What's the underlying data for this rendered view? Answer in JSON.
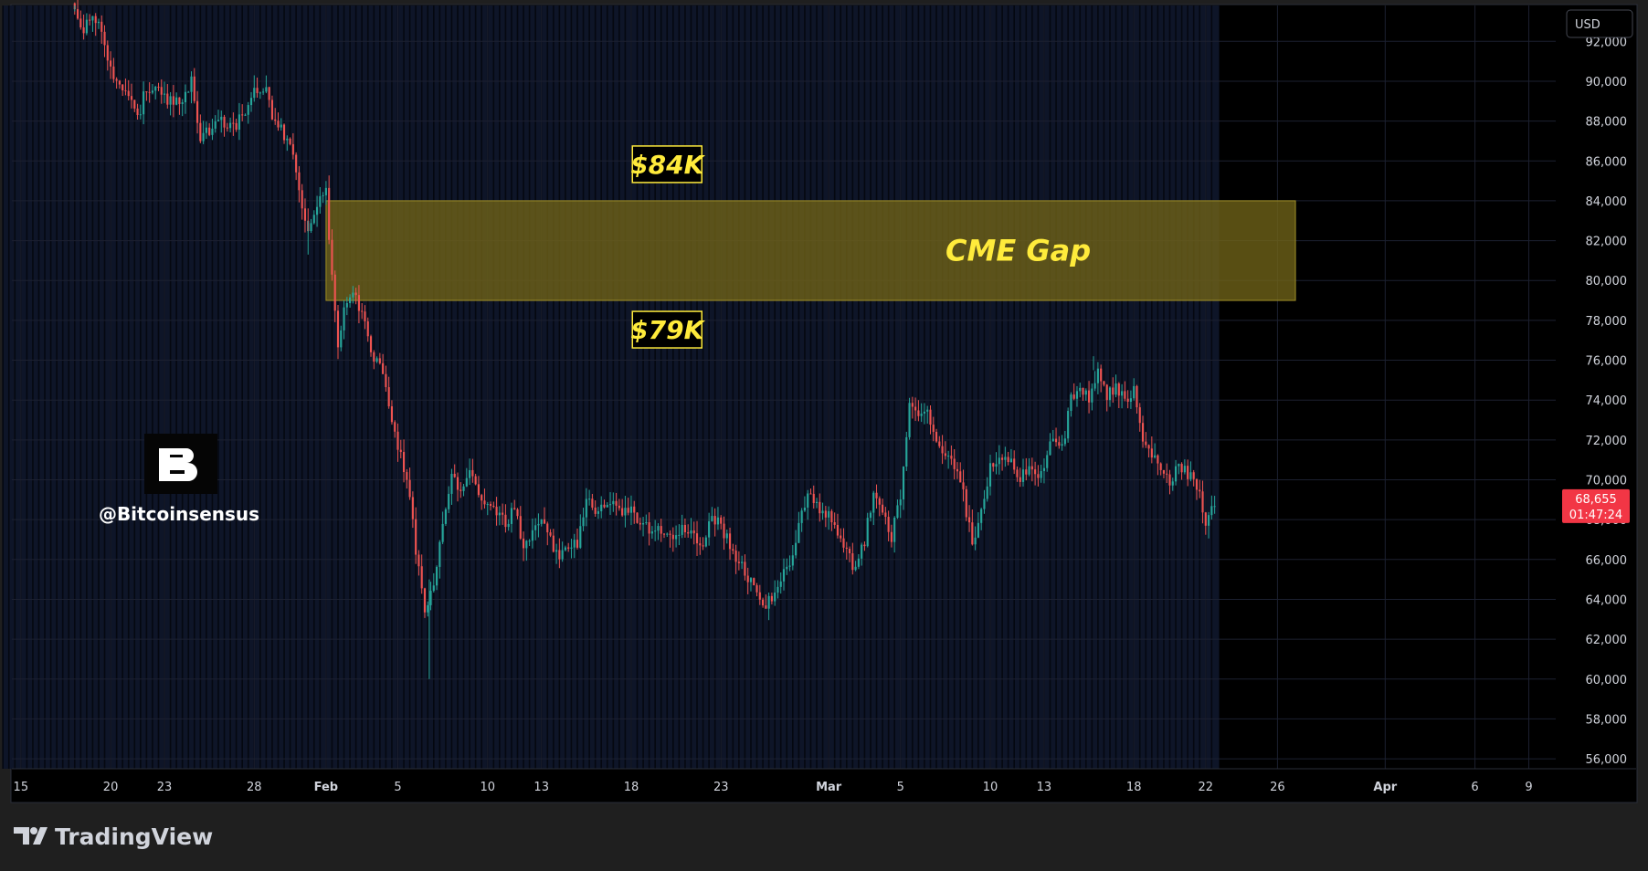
{
  "watermark": {
    "handle": "@Bitcoinsensus"
  },
  "footer": {
    "brand": "TradingView"
  },
  "currency_button": {
    "label": "USD"
  },
  "price_badge": {
    "price": "68,655",
    "countdown": "01:47:24",
    "color": "#f23645"
  },
  "colors": {
    "up": "#26a69a",
    "down": "#ef5350",
    "gap_fill": "#716418",
    "annotation": "#ffeb3b",
    "session_band": "#0e1528"
  },
  "chart_data": {
    "type": "candlestick",
    "instrument": "BTC/USD",
    "y_unit": "USD",
    "y_range": [
      55500,
      93800
    ],
    "y_ticks": [
      56000,
      58000,
      60000,
      62000,
      64000,
      66000,
      68000,
      70000,
      72000,
      74000,
      76000,
      78000,
      80000,
      82000,
      84000,
      86000,
      88000,
      90000,
      92000
    ],
    "y_tick_labels": [
      "56,000",
      "58,000",
      "60,000",
      "62,000",
      "64,000",
      "66,000",
      "68,000",
      "70,000",
      "72,000",
      "74,000",
      "76,000",
      "78,000",
      "80,000",
      "82,000",
      "84,000",
      "86,000",
      "88,000",
      "90,000",
      "92,000"
    ],
    "x_range": [
      "2026-01-15",
      "2026-04-11"
    ],
    "x_ticks": [
      {
        "date": "2026-01-15",
        "label": "15",
        "month": false
      },
      {
        "date": "2026-01-20",
        "label": "20",
        "month": false
      },
      {
        "date": "2026-01-23",
        "label": "23",
        "month": false
      },
      {
        "date": "2026-01-28",
        "label": "28",
        "month": false
      },
      {
        "date": "2026-02-01",
        "label": "Feb",
        "month": true
      },
      {
        "date": "2026-02-05",
        "label": "5",
        "month": false
      },
      {
        "date": "2026-02-10",
        "label": "10",
        "month": false
      },
      {
        "date": "2026-02-13",
        "label": "13",
        "month": false
      },
      {
        "date": "2026-02-18",
        "label": "18",
        "month": false
      },
      {
        "date": "2026-02-23",
        "label": "23",
        "month": false
      },
      {
        "date": "2026-03-01",
        "label": "Mar",
        "month": true
      },
      {
        "date": "2026-03-05",
        "label": "5",
        "month": false
      },
      {
        "date": "2026-03-10",
        "label": "10",
        "month": false
      },
      {
        "date": "2026-03-13",
        "label": "13",
        "month": false
      },
      {
        "date": "2026-03-18",
        "label": "18",
        "month": false
      },
      {
        "date": "2026-03-22",
        "label": "22",
        "month": false
      },
      {
        "date": "2026-03-26",
        "label": "26",
        "month": false
      },
      {
        "date": "2026-04-01",
        "label": "Apr",
        "month": true
      },
      {
        "date": "2026-04-06",
        "label": "6",
        "month": false
      },
      {
        "date": "2026-04-09",
        "label": "9",
        "month": false
      }
    ],
    "price_path": [
      [
        "2026-01-18",
        93600
      ],
      [
        "2026-01-18T12",
        92600
      ],
      [
        "2026-01-19",
        93100
      ],
      [
        "2026-01-19T12",
        92500
      ],
      [
        "2026-01-20",
        90500
      ],
      [
        "2026-01-21",
        89500
      ],
      [
        "2026-01-21T12",
        88000
      ],
      [
        "2026-01-22",
        89800
      ],
      [
        "2026-01-23",
        89200
      ],
      [
        "2026-01-24",
        88800
      ],
      [
        "2026-01-24T12",
        90200
      ],
      [
        "2026-01-25",
        87200
      ],
      [
        "2026-01-26",
        88000
      ],
      [
        "2026-01-27",
        87800
      ],
      [
        "2026-01-27T12",
        88600
      ],
      [
        "2026-01-28",
        89800
      ],
      [
        "2026-01-28T16",
        89600
      ],
      [
        "2026-01-29",
        88200
      ],
      [
        "2026-01-30",
        86800
      ],
      [
        "2026-01-30T12",
        84500
      ],
      [
        "2026-01-31",
        82600
      ],
      [
        "2026-01-31T12",
        83800
      ],
      [
        "2026-02-01",
        84300
      ],
      [
        "2026-02-01T08",
        80200
      ],
      [
        "2026-02-01T16",
        76500
      ],
      [
        "2026-02-02",
        78400
      ],
      [
        "2026-02-02T12",
        79100
      ],
      [
        "2026-02-03",
        78600
      ],
      [
        "2026-02-03T12",
        76500
      ],
      [
        "2026-02-04",
        75800
      ],
      [
        "2026-02-04T12",
        73800
      ],
      [
        "2026-02-05",
        71800
      ],
      [
        "2026-02-05T12",
        70200
      ],
      [
        "2026-02-06",
        66500
      ],
      [
        "2026-02-06T12",
        63500
      ],
      [
        "2026-02-07",
        65000
      ],
      [
        "2026-02-07T12",
        67500
      ],
      [
        "2026-02-08",
        70500
      ],
      [
        "2026-02-08T12",
        69500
      ],
      [
        "2026-02-09",
        70200
      ],
      [
        "2026-02-10",
        68800
      ],
      [
        "2026-02-11",
        67800
      ],
      [
        "2026-02-11T12",
        68500
      ],
      [
        "2026-02-12",
        66500
      ],
      [
        "2026-02-12T12",
        67200
      ],
      [
        "2026-02-13",
        67800
      ],
      [
        "2026-02-14",
        66200
      ],
      [
        "2026-02-15",
        66800
      ],
      [
        "2026-02-15T12",
        69000
      ],
      [
        "2026-02-16",
        68600
      ],
      [
        "2026-02-17",
        69200
      ],
      [
        "2026-02-17T12",
        68200
      ],
      [
        "2026-02-18",
        68500
      ],
      [
        "2026-02-19",
        67500
      ],
      [
        "2026-02-19T12",
        67800
      ],
      [
        "2026-02-20",
        67000
      ],
      [
        "2026-02-21",
        67600
      ],
      [
        "2026-02-22",
        66800
      ],
      [
        "2026-02-22T12",
        68200
      ],
      [
        "2026-02-23",
        67700
      ],
      [
        "2026-02-24",
        65800
      ],
      [
        "2026-02-25",
        64500
      ],
      [
        "2026-02-25T12",
        63500
      ],
      [
        "2026-02-26",
        64500
      ],
      [
        "2026-02-27",
        66000
      ],
      [
        "2026-02-27T12",
        68500
      ],
      [
        "2026-02-28",
        69500
      ],
      [
        "2026-02-28T12",
        68300
      ],
      [
        "2026-03-01",
        68200
      ],
      [
        "2026-03-02",
        66200
      ],
      [
        "2026-03-02T12",
        65500
      ],
      [
        "2026-03-03",
        67000
      ],
      [
        "2026-03-03T12",
        69400
      ],
      [
        "2026-03-04",
        68500
      ],
      [
        "2026-03-04T12",
        67200
      ],
      [
        "2026-03-05",
        69300
      ],
      [
        "2026-03-05T12",
        73600
      ],
      [
        "2026-03-06",
        73000
      ],
      [
        "2026-03-06T12",
        73700
      ],
      [
        "2026-03-07",
        71800
      ],
      [
        "2026-03-07T12",
        71200
      ],
      [
        "2026-03-08",
        70800
      ],
      [
        "2026-03-08T12",
        69200
      ],
      [
        "2026-03-09",
        66800
      ],
      [
        "2026-03-09T12",
        68200
      ],
      [
        "2026-03-10",
        70500
      ],
      [
        "2026-03-11",
        71200
      ],
      [
        "2026-03-11T12",
        69800
      ],
      [
        "2026-03-12",
        70600
      ],
      [
        "2026-03-12T12",
        70200
      ],
      [
        "2026-03-13",
        70800
      ],
      [
        "2026-03-13T12",
        72300
      ],
      [
        "2026-03-14",
        71500
      ],
      [
        "2026-03-14T12",
        74000
      ],
      [
        "2026-03-15",
        74600
      ],
      [
        "2026-03-15T12",
        74100
      ],
      [
        "2026-03-16",
        75700
      ],
      [
        "2026-03-16T12",
        74100
      ],
      [
        "2026-03-17",
        74700
      ],
      [
        "2026-03-17T12",
        73900
      ],
      [
        "2026-03-18",
        74400
      ],
      [
        "2026-03-18T12",
        71800
      ],
      [
        "2026-03-19",
        71200
      ],
      [
        "2026-03-19T12",
        70500
      ],
      [
        "2026-03-20",
        69800
      ],
      [
        "2026-03-20T12",
        70800
      ],
      [
        "2026-03-21",
        70200
      ],
      [
        "2026-03-21T12",
        69800
      ],
      [
        "2026-03-22",
        67800
      ],
      [
        "2026-03-22T08",
        68700
      ],
      [
        "2026-03-22T14",
        68655
      ]
    ],
    "zones": [
      {
        "type": "rectangle",
        "label": "CME Gap",
        "from": "2026-02-01",
        "to": "2026-03-27",
        "low": 79000,
        "high": 84000
      }
    ],
    "annotations": [
      {
        "text": "$84K",
        "price": 84000,
        "date": "2026-02-20",
        "position": "above"
      },
      {
        "text": "$79K",
        "price": 79000,
        "date": "2026-02-20",
        "position": "below"
      }
    ],
    "last_price": 68655,
    "grid": true
  }
}
